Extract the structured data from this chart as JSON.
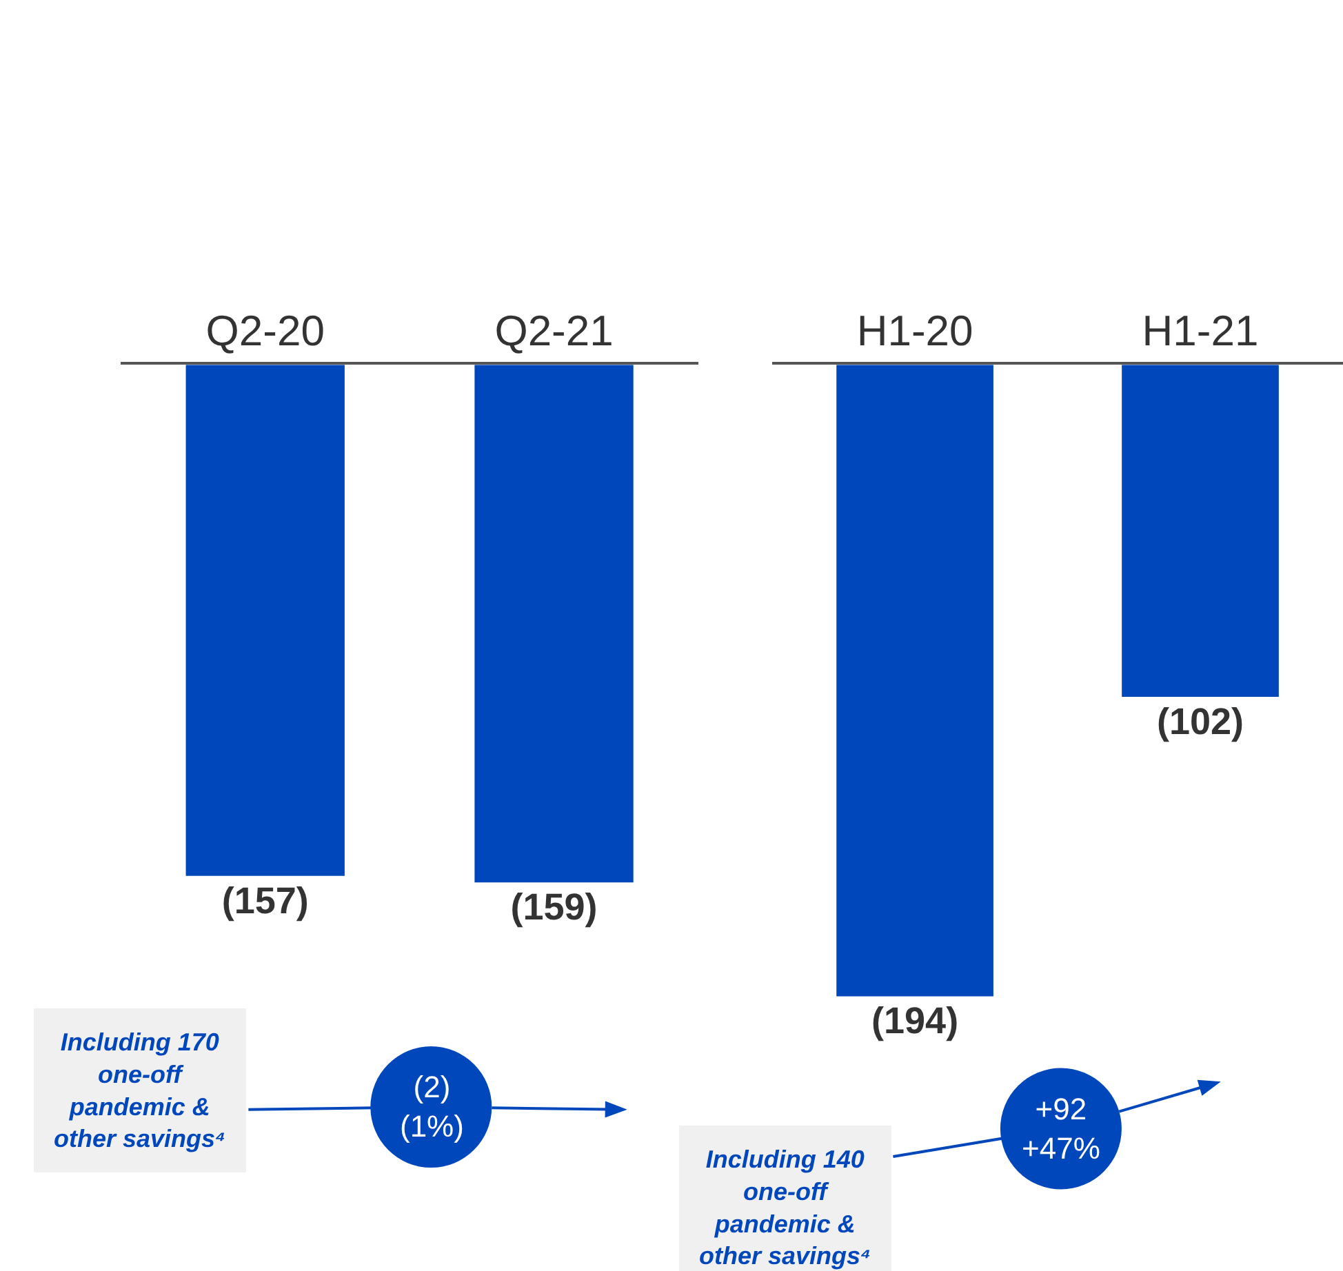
{
  "chart_data": [
    {
      "type": "bar",
      "categories": [
        "Q2-20",
        "Q2-21"
      ],
      "values": [
        -157,
        -159
      ],
      "color": "#0047bb",
      "value_labels": [
        "(157)",
        "(159)"
      ],
      "annotations": [
        "Including 170 one-off pandemic & other savings⁴",
        "(2) (1%)"
      ]
    },
    {
      "type": "bar",
      "categories": [
        "H1-20",
        "H1-21"
      ],
      "values": [
        -194,
        -102
      ],
      "color": "#0047bb",
      "value_labels": [
        "(194)",
        "(102)"
      ],
      "annotations": [
        "Including 140 one-off pandemic & other savings⁴",
        "+92 +47%"
      ]
    }
  ]
}
